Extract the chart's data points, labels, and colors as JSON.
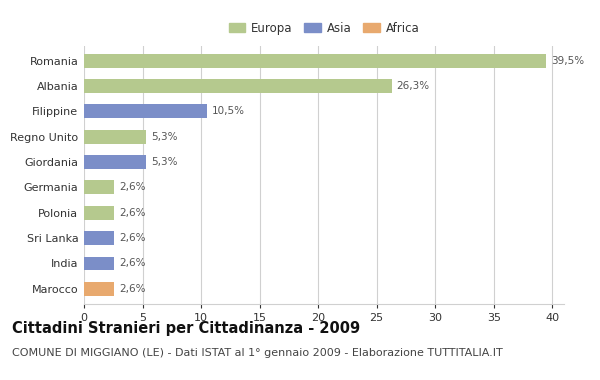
{
  "categories": [
    "Romania",
    "Albania",
    "Filippine",
    "Regno Unito",
    "Giordania",
    "Germania",
    "Polonia",
    "Sri Lanka",
    "India",
    "Marocco"
  ],
  "values": [
    39.5,
    26.3,
    10.5,
    5.3,
    5.3,
    2.6,
    2.6,
    2.6,
    2.6,
    2.6
  ],
  "labels": [
    "39,5%",
    "26,3%",
    "10,5%",
    "5,3%",
    "5,3%",
    "2,6%",
    "2,6%",
    "2,6%",
    "2,6%",
    "2,6%"
  ],
  "colors": [
    "#b5c98e",
    "#b5c98e",
    "#7b8ec8",
    "#b5c98e",
    "#7b8ec8",
    "#b5c98e",
    "#b5c98e",
    "#7b8ec8",
    "#7b8ec8",
    "#e8a96e"
  ],
  "legend_labels": [
    "Europa",
    "Asia",
    "Africa"
  ],
  "legend_colors": [
    "#b5c98e",
    "#7b8ec8",
    "#e8a96e"
  ],
  "title": "Cittadini Stranieri per Cittadinanza - 2009",
  "subtitle": "COMUNE DI MIGGIANO (LE) - Dati ISTAT al 1° gennaio 2009 - Elaborazione TUTTITALIA.IT",
  "xlim": [
    0,
    41
  ],
  "xticks": [
    0,
    5,
    10,
    15,
    20,
    25,
    30,
    35,
    40
  ],
  "background_color": "#ffffff",
  "grid_color": "#d0d0d0",
  "bar_height": 0.55,
  "title_fontsize": 10.5,
  "subtitle_fontsize": 8,
  "label_fontsize": 7.5,
  "tick_fontsize": 8,
  "legend_fontsize": 8.5
}
